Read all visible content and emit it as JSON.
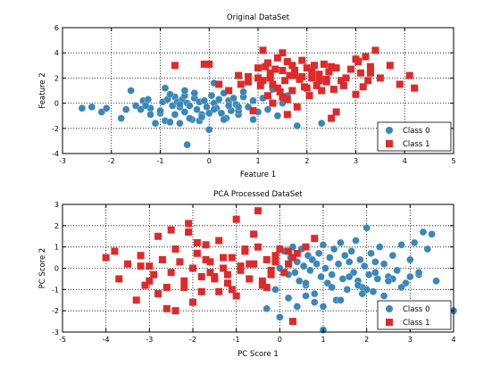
{
  "colors": {
    "class0": "#3a87b8",
    "class1": "#de2a2a",
    "frame": "#000000",
    "grid": "#000000"
  },
  "chart_data": [
    {
      "type": "scatter",
      "title": "Original DataSet",
      "xlabel": "Feature 1",
      "ylabel": "Feature 2",
      "xlim": [
        -3,
        5
      ],
      "ylim": [
        -4,
        6
      ],
      "xticks": [
        -3,
        -2,
        -1,
        0,
        1,
        2,
        3,
        4,
        5
      ],
      "yticks": [
        -4,
        -2,
        0,
        2,
        4,
        6
      ],
      "grid": true,
      "legend_position": "bottom-right",
      "series": [
        {
          "name": "Class 0",
          "marker": "circle",
          "color": "#3a87b8",
          "x": [
            -2.6,
            -2.4,
            -2.2,
            -2.1,
            -1.8,
            -1.7,
            -1.6,
            -1.5,
            -1.4,
            -1.35,
            -1.25,
            -1.2,
            -1.1,
            -1.0,
            -0.95,
            -0.9,
            -0.85,
            -0.8,
            -0.75,
            -0.7,
            -0.7,
            -0.65,
            -0.6,
            -0.55,
            -0.5,
            -0.5,
            -0.45,
            -0.4,
            -0.35,
            -0.3,
            -0.25,
            -0.2,
            -0.15,
            -0.1,
            -0.05,
            0.0,
            0.05,
            0.1,
            0.15,
            0.2,
            0.25,
            0.3,
            0.35,
            0.4,
            0.45,
            0.5,
            0.55,
            0.6,
            0.7,
            0.8,
            0.9,
            1.0,
            1.1,
            1.2,
            1.3,
            1.4,
            1.5,
            1.6,
            -0.6,
            -0.4,
            -1.0,
            -1.2,
            -0.2,
            0.0,
            0.3,
            0.6,
            0.9,
            -0.8,
            -0.5,
            -0.3,
            -0.15,
            0.1,
            0.4,
            0.7,
            -1.3,
            -0.9,
            1.8,
            2.3,
            0.6,
            0.1,
            -0.45,
            -0.6
          ],
          "y": [
            -0.4,
            -0.3,
            -0.7,
            -0.4,
            -1.2,
            -0.5,
            1.0,
            -0.2,
            -0.5,
            0.2,
            0.3,
            -0.4,
            -1.6,
            -0.8,
            0.1,
            -1.4,
            0.3,
            -1.5,
            -0.2,
            0.5,
            -0.9,
            0.1,
            -0.3,
            0.3,
            0.6,
            -0.7,
            0.0,
            -0.2,
            -1.3,
            0.4,
            -0.5,
            0.1,
            -0.9,
            0.2,
            -0.3,
            -2.1,
            0.6,
            0.0,
            -0.4,
            0.3,
            -0.8,
            0.8,
            -1.2,
            0.2,
            -0.6,
            0.4,
            -0.1,
            -0.9,
            0.5,
            -0.3,
            0.2,
            -0.7,
            0.4,
            -0.5,
            1.1,
            -1.0,
            0.0,
            0.6,
            -1.6,
            -1.2,
            -0.6,
            -0.9,
            -1.4,
            -0.8,
            -1.3,
            -0.6,
            -1.3,
            0.7,
            1.0,
            0.8,
            -1.1,
            -0.5,
            -0.2,
            0.9,
            -0.2,
            1.2,
            -1.8,
            -1.6,
            -0.3,
            1.6,
            -3.3,
            -0.1
          ]
        },
        {
          "name": "Class 1",
          "marker": "square",
          "color": "#de2a2a",
          "x": [
            -0.7,
            -0.1,
            0.0,
            0.6,
            0.65,
            0.8,
            1.0,
            1.0,
            1.1,
            1.1,
            1.15,
            1.2,
            1.2,
            1.25,
            1.3,
            1.3,
            1.35,
            1.4,
            1.4,
            1.45,
            1.5,
            1.5,
            1.55,
            1.6,
            1.6,
            1.65,
            1.7,
            1.75,
            1.8,
            1.85,
            1.9,
            1.95,
            2.0,
            2.05,
            2.1,
            2.15,
            2.2,
            2.25,
            2.3,
            2.35,
            2.4,
            2.45,
            2.5,
            2.55,
            2.6,
            2.7,
            2.8,
            2.9,
            3.0,
            3.05,
            3.1,
            3.2,
            3.25,
            3.3,
            3.4,
            3.5,
            3.7,
            3.9,
            4.1,
            4.2,
            1.05,
            1.25,
            1.5,
            1.75,
            2.0,
            2.25,
            2.5,
            2.75,
            3.0,
            3.3,
            0.4,
            0.9,
            1.7,
            2.1,
            2.6,
            3.15,
            0.8,
            1.6,
            2.4,
            1.9,
            0.2
          ],
          "y": [
            3.0,
            3.1,
            3.1,
            2.2,
            1.5,
            2.1,
            2.8,
            2.0,
            4.2,
            1.8,
            2.9,
            3.2,
            0.6,
            2.4,
            1.5,
            0.0,
            2.7,
            3.6,
            1.2,
            0.9,
            2.6,
            4.0,
            1.8,
            3.3,
            0.3,
            2.2,
            1.0,
            2.6,
            -0.3,
            1.9,
            3.4,
            1.3,
            2.8,
            0.6,
            2.0,
            3.0,
            1.4,
            2.3,
            1.0,
            3.1,
            1.7,
            2.5,
            -1.2,
            1.1,
            2.8,
            1.8,
            2.0,
            2.7,
            0.7,
            3.3,
            2.4,
            3.7,
            1.8,
            2.9,
            4.2,
            2.0,
            3.0,
            1.5,
            2.2,
            1.2,
            1.4,
            2.0,
            0.5,
            2.2,
            1.2,
            1.8,
            2.9,
            1.4,
            3.5,
            2.4,
            1.0,
            -0.6,
            3.0,
            2.5,
            -0.7,
            1.3,
            1.7,
            -0.9,
            1.9,
            2.1,
            1.5
          ]
        }
      ],
      "legend": [
        "Class 0",
        "Class 1"
      ],
      "tick_labels_x": [
        "-3",
        "-2",
        "-1",
        "0",
        "1",
        "2",
        "3",
        "4",
        "5"
      ],
      "tick_labels_y": [
        "-4",
        "-2",
        "0",
        "2",
        "4",
        "6"
      ]
    },
    {
      "type": "scatter",
      "title": "PCA Processed DataSet",
      "xlabel": "PC Score 1",
      "ylabel": "PC Score 2",
      "xlim": [
        -5,
        4
      ],
      "ylim": [
        -3,
        3
      ],
      "xticks": [
        -5,
        -4,
        -3,
        -2,
        -1,
        0,
        1,
        2,
        3,
        4
      ],
      "yticks": [
        -3,
        -2,
        -1,
        0,
        1,
        2,
        3
      ],
      "grid": true,
      "legend_position": "bottom-right",
      "series": [
        {
          "name": "Class 0",
          "marker": "circle",
          "color": "#3a87b8",
          "x": [
            0.1,
            0.2,
            0.25,
            0.3,
            0.35,
            0.4,
            0.45,
            0.5,
            0.55,
            0.6,
            0.65,
            0.7,
            0.75,
            0.8,
            0.85,
            0.9,
            0.95,
            1.0,
            1.05,
            1.1,
            1.15,
            1.2,
            1.25,
            1.3,
            1.35,
            1.4,
            1.45,
            1.5,
            1.55,
            1.6,
            1.65,
            1.7,
            1.75,
            1.8,
            1.85,
            1.9,
            1.95,
            2.0,
            2.05,
            2.1,
            2.15,
            2.2,
            2.25,
            2.3,
            2.4,
            2.5,
            2.6,
            2.7,
            2.8,
            2.9,
            3.0,
            3.1,
            3.2,
            3.3,
            3.4,
            3.5,
            3.6,
            4.0,
            -0.3,
            -0.1,
            0.0,
            0.2,
            0.4,
            0.6,
            0.8,
            1.0,
            1.2,
            1.4,
            1.6,
            1.8,
            2.0,
            2.2,
            2.4,
            2.6,
            2.8,
            3.0,
            0.0,
            0.6,
            1.2,
            1.9,
            2.5,
            3.2,
            1.0
          ],
          "y": [
            0.8,
            -0.3,
            0.5,
            1.0,
            -0.2,
            0.3,
            -0.6,
            0.9,
            0.1,
            -0.8,
            0.6,
            -0.1,
            0.4,
            -1.2,
            0.2,
            0.7,
            -0.4,
            1.1,
            0.0,
            -0.7,
            0.5,
            -0.3,
            0.9,
            -1.5,
            0.2,
            1.2,
            -0.5,
            0.6,
            -1.0,
            0.3,
            0.8,
            -0.2,
            1.3,
            -0.6,
            0.4,
            -0.9,
            0.1,
            1.9,
            -0.3,
            0.7,
            -1.1,
            0.3,
            -0.5,
            1.0,
            0.2,
            -0.4,
            0.6,
            -0.1,
            1.1,
            -0.7,
            0.4,
            1.2,
            -0.3,
            1.7,
            0.9,
            1.6,
            -0.6,
            -2.0,
            -1.9,
            -1.0,
            -2.3,
            -1.4,
            -1.8,
            -1.3,
            -1.6,
            -2.9,
            -0.9,
            -1.5,
            -0.4,
            -0.8,
            -1.0,
            -0.2,
            -1.3,
            -0.5,
            -0.9,
            -0.4,
            0.0,
            -0.7,
            -0.3,
            -1.2,
            -0.6,
            -0.2,
            -1.8
          ]
        },
        {
          "name": "Class 1",
          "marker": "square",
          "color": "#de2a2a",
          "x": [
            -4.0,
            -3.8,
            -3.7,
            -3.5,
            -3.3,
            -3.2,
            -3.1,
            -3.0,
            -2.9,
            -2.8,
            -2.7,
            -2.6,
            -2.5,
            -2.4,
            -2.3,
            -2.2,
            -2.1,
            -2.0,
            -1.9,
            -1.8,
            -1.7,
            -1.6,
            -1.5,
            -1.4,
            -1.3,
            -1.2,
            -1.1,
            -1.0,
            -0.9,
            -0.8,
            -0.7,
            -0.6,
            -0.5,
            -0.4,
            -0.3,
            -0.2,
            -0.1,
            0.0,
            0.1,
            0.2,
            0.3,
            0.4,
            -2.5,
            -2.2,
            -1.9,
            -1.6,
            -1.3,
            -1.0,
            -0.7,
            -0.4,
            -0.1,
            0.3,
            -3.0,
            -2.6,
            -2.1,
            -1.7,
            -1.2,
            -0.8,
            -0.3,
            0.6,
            -2.4,
            -1.5,
            -0.9,
            -0.5,
            -0.2,
            -3.2,
            -2.8,
            -1.8,
            -1.1,
            -0.6,
            0.2,
            0.8,
            -2.0,
            -1.4
          ],
          "y": [
            0.5,
            0.8,
            -0.5,
            0.2,
            -1.5,
            0.6,
            -0.8,
            0.1,
            -0.3,
            -1.2,
            0.4,
            -1.9,
            -0.2,
            0.9,
            0.3,
            -0.6,
            2.1,
            0.0,
            0.7,
            -1.1,
            1.1,
            0.3,
            -0.4,
            1.3,
            0.0,
            -0.7,
            0.5,
            2.3,
            -0.1,
            0.8,
            -0.5,
            0.2,
            1.0,
            -0.8,
            0.4,
            -0.3,
            0.6,
            0.9,
            -0.2,
            0.2,
            -2.5,
            0.7,
            1.8,
            -0.9,
            1.2,
            -0.2,
            0.5,
            -1.3,
            0.2,
            -0.6,
            0.3,
            0.5,
            -0.6,
            -0.9,
            1.7,
            0.4,
            -0.3,
            0.9,
            -0.9,
            1.0,
            -2.0,
            -0.5,
            0.1,
            2.7,
            -0.1,
            0.1,
            1.5,
            -0.4,
            -1.0,
            1.6,
            0.8,
            1.4,
            -1.6,
            -1.1
          ]
        }
      ],
      "legend": [
        "Class 0",
        "Class 1"
      ],
      "tick_labels_x": [
        "-5",
        "-4",
        "-3",
        "-2",
        "-1",
        "0",
        "1",
        "2",
        "3",
        "4"
      ],
      "tick_labels_y": [
        "-3",
        "-2",
        "-1",
        "0",
        "1",
        "2",
        "3"
      ]
    }
  ]
}
